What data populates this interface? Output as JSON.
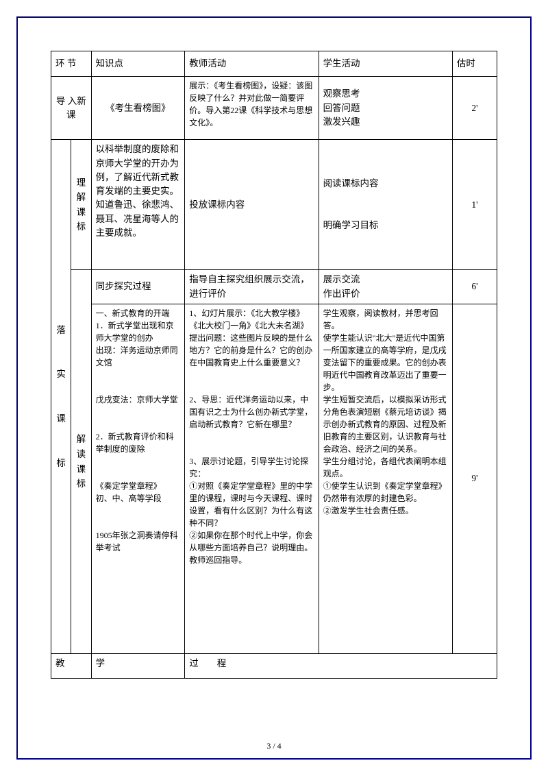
{
  "header": {
    "c1": "环 节",
    "c2": "知识点",
    "c3": "教师活动",
    "c4": "学生活动",
    "c5": "估时"
  },
  "r1": {
    "section": "导 入新 课",
    "knowledge": "《考生看榜图》",
    "teacher": "展示：《考生看榜图》，设疑：该图反映了什么？并对此做一简要评价。导入第22课《科学技术与思想文化》。",
    "student": "观察思考\n回答问题\n激发兴趣",
    "time": "2'"
  },
  "section2": "落\n\n实\n\n课\n\n标",
  "r2": {
    "sub": "理解课标",
    "knowledge": "以科举制度的废除和京师大学堂的开办为例，了解近代新式教育发端的主要史实。知道鲁迅、徐悲鸿、聂耳、冼星海等人的主要成就。",
    "teacher": "投放课标内容",
    "student": "阅读课标内容\n\n明确学习目标",
    "time": "1'"
  },
  "r3": {
    "knowledge": "同步探究过程",
    "teacher": "指导自主探究组织展示交流，进行评价",
    "student": "展示交流\n作出评价",
    "time": "6'"
  },
  "r4": {
    "sub": "解读课标",
    "knowledge": "一、新式教育的开端\n1．新式学堂出现和京师大学堂的创办\n出现：洋务运动京师同文馆\n\n戊戌变法：京师大学堂\n\n2．新式教育评价和科举制度的废除\n\n《奏定学堂章程》\n初、中、高等学段\n\n1905年张之洞奏请停科举考试",
    "teacher": "1、幻灯片展示：《北大教学楼》《北大校门一角》《北大未名湖》提出问题：这些图片反映的是什么地方？它的前身是什么？它的创办在中国教育史上什么重要意义？\n\n2、导思：近代洋务运动以来，中国有识之士为什么创办新式学堂，启动新式教育？它新在哪里？\n\n3、展示讨论题，引导学生讨论探究：\n①对照《奏定学堂章程》里的中学里的课程，课时与今天课程、课时设置，看有什么区别？为什么有这种不同？\n②如果你在那个时代上中学，你会从哪些方面培养自己？说明理由。\n教师巡回指导。",
    "student": " 学生观察，阅读教材，并思考回答。\n使学生能认识\"北大\"是近代中国第一所国家建立的高等学府，是戊戌变法留下的重要成果。它的创办表明近代中国教育改革迈出了重要一步。\n学生短暂交流后，以模拟采访形式分角色表演短剧《蔡元培访谈》揭示创办新式教育的原因、过程及新旧教育的主要区别，认识教育与社会政治、经济之间的关系。\n学生分组讨论，各组代表阐明本组观点。\n①使学生认识到《奏定学堂章程》仍然带有浓厚的封建色彩。\n②激发学生社会责任感。",
    "time": "9'"
  },
  "footer_row": {
    "c1": "教",
    "c2": "学",
    "c3": "过",
    "c4": "程"
  },
  "page_footer": "3 / 4"
}
